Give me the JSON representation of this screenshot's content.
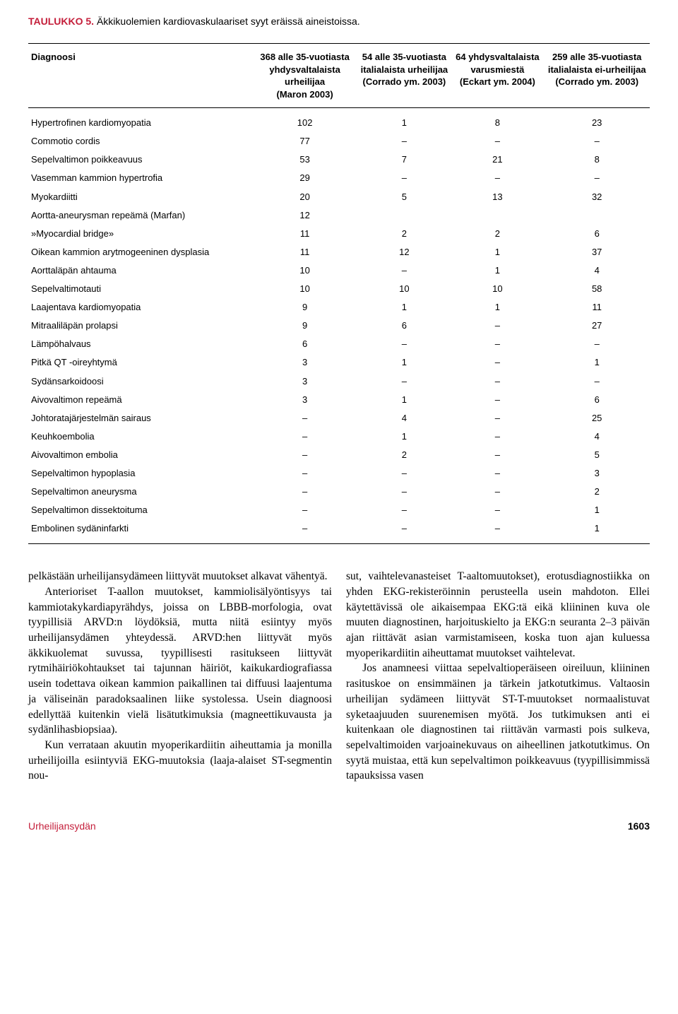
{
  "table": {
    "label_prefix": "TAULUKKO 5.",
    "title_rest": "Äkkikuolemien kardiovaskulaariset syyt eräissä aineistoissa.",
    "headers": {
      "col1": "Diagnoosi",
      "col2": "368 alle 35-vuotiasta\nyhdysvaltalaista urheilijaa\n(Maron 2003)",
      "col3": "54 alle 35-vuotiasta\nitalialaista urheilijaa\n(Corrado ym. 2003)",
      "col4": "64 yhdysvaltalaista\nvarusmiestä\n(Eckart ym. 2004)",
      "col5": "259 alle 35-vuotiasta\nitalialaista ei-urheilijaa\n(Corrado ym. 2003)"
    },
    "rows": [
      [
        "Hypertrofinen kardiomyopatia",
        "102",
        "1",
        "8",
        "23"
      ],
      [
        "Commotio cordis",
        "77",
        "–",
        "–",
        "–"
      ],
      [
        "Sepelvaltimon poikkeavuus",
        "53",
        "7",
        "21",
        "8"
      ],
      [
        "Vasemman kammion hypertrofia",
        "29",
        "–",
        "–",
        "–"
      ],
      [
        "Myokardiitti",
        "20",
        "5",
        "13",
        "32"
      ],
      [
        "Aortta-aneurysman repeämä (Marfan)",
        "12",
        "",
        "",
        ""
      ],
      [
        "»Myocardial bridge»",
        "11",
        "2",
        "2",
        "6"
      ],
      [
        "Oikean kammion arytmogeeninen dysplasia",
        "11",
        "12",
        "1",
        "37"
      ],
      [
        "Aorttaläpän ahtauma",
        "10",
        "–",
        "1",
        "4"
      ],
      [
        "Sepelvaltimotauti",
        "10",
        "10",
        "10",
        "58"
      ],
      [
        "Laajentava kardiomyopatia",
        "9",
        "1",
        "1",
        "11"
      ],
      [
        "Mitraaliläpän prolapsi",
        "9",
        "6",
        "–",
        "27"
      ],
      [
        "Lämpöhalvaus",
        "6",
        "–",
        "–",
        "–"
      ],
      [
        "Pitkä QT -oireyhtymä",
        "3",
        "1",
        "–",
        "1"
      ],
      [
        "Sydänsarkoidoosi",
        "3",
        "–",
        "–",
        "–"
      ],
      [
        "Aivovaltimon repeämä",
        "3",
        "1",
        "–",
        "6"
      ],
      [
        "Johtoratajärjestelmän sairaus",
        "–",
        "4",
        "–",
        "25"
      ],
      [
        "Keuhkoembolia",
        "–",
        "1",
        "–",
        "4"
      ],
      [
        "Aivovaltimon embolia",
        "–",
        "2",
        "–",
        "5"
      ],
      [
        "Sepelvaltimon hypoplasia",
        "–",
        "–",
        "–",
        "3"
      ],
      [
        "Sepelvaltimon aneurysma",
        "–",
        "–",
        "–",
        "2"
      ],
      [
        "Sepelvaltimon dissektoituma",
        "–",
        "–",
        "–",
        "1"
      ],
      [
        "Embolinen sydäninfarkti",
        "–",
        "–",
        "–",
        "1"
      ]
    ]
  },
  "body": {
    "left": {
      "p1": "pelkästään urheilijansydämeen liittyvät muutokset alkavat vähentyä.",
      "p2": "Anterioriset T-aallon muutokset, kammiolisälyöntisyys tai kammiotakykardiapyrähdys, joissa on LBBB-morfologia, ovat tyypillisiä ARVD:n löydöksiä, mutta niitä esiintyy myös urheilijansydämen yhteydessä. ARVD:hen liittyvät myös äkkikuolemat suvussa, tyypillisesti rasitukseen liittyvät rytmihäiriökohtaukset tai tajunnan häiriöt, kaikukardiografiassa usein todettava oikean kammion paikallinen tai diffuusi laajentuma ja väliseinän paradoksaalinen liike systolessa. Usein diagnoosi edellyttää kuitenkin vielä lisätutkimuksia (magneettikuvausta ja sydänlihasbiopsiaa).",
      "p3": "Kun verrataan akuutin myoperikardiitin aiheuttamia ja monilla urheilijoilla esiintyviä EKG-muutoksia (laaja-alaiset ST-segmentin nou-"
    },
    "right": {
      "p1": "sut, vaihtelevanasteiset T-aaltomuutokset), erotusdiagnostiikka on yhden EKG-rekisteröinnin perusteella usein mahdoton. Ellei käytettävissä ole aikaisempaa EKG:tä eikä kliininen kuva ole muuten diagnostinen, harjoituskielto ja EKG:n seuranta 2–3 päivän ajan riittävät asian varmistamiseen, koska tuon ajan kuluessa myoperikardiitin aiheuttamat muutokset vaihtelevat.",
      "p2": "Jos anamneesi viittaa sepelvaltioperäiseen oireiluun, kliininen rasituskoe on ensimmäinen ja tärkein jatkotutkimus. Valtaosin urheilijan sydämeen liittyvät ST-T-muutokset normaalistuvat syketaajuuden suurenemisen myötä. Jos tutkimuksen anti ei kuitenkaan ole diagnostinen tai riittävän varmasti pois sulkeva, sepelvaltimoiden varjoainekuvaus on aiheellinen jatkotutkimus. On syytä muistaa, että kun sepelvaltimon poikkeavuus (tyypillisimmissä tapauksissa vasen"
    }
  },
  "footer": {
    "label": "Urheilijansydän",
    "page": "1603"
  },
  "colors": {
    "accent": "#c41e3a",
    "text": "#000000",
    "bg": "#ffffff",
    "border": "#000000"
  }
}
